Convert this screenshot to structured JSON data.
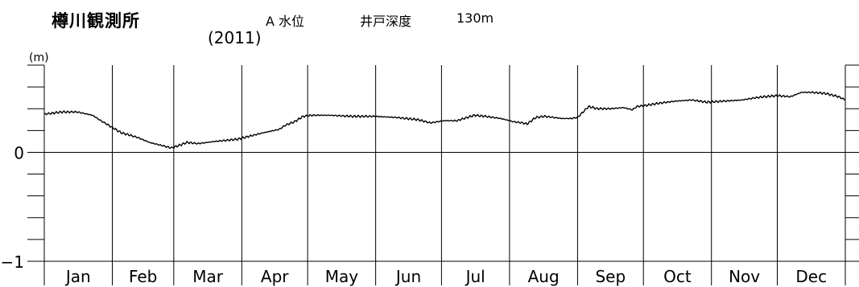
{
  "header": {
    "station": "樽川観測所",
    "year": "(2011)",
    "series_label": "A 水位",
    "depth_label": "井戸深度",
    "depth_value": "130m"
  },
  "chart_data": {
    "type": "line",
    "title": "樽川観測所",
    "ylabel": "(m)",
    "xlabel": "",
    "ylim": [
      -1,
      0.8
    ],
    "xlim": [
      0,
      365
    ],
    "zero_line": true,
    "y_tick_labels": [
      {
        "value": 0,
        "label": "0"
      },
      {
        "value": -1,
        "label": "−1"
      }
    ],
    "y_minor_step": 0.2,
    "categories": [
      "Jan",
      "Feb",
      "Mar",
      "Apr",
      "May",
      "Jun",
      "Jul",
      "Aug",
      "Sep",
      "Oct",
      "Nov",
      "Dec"
    ],
    "month_start_days": [
      0,
      31,
      59,
      90,
      120,
      151,
      181,
      212,
      243,
      273,
      304,
      334,
      365
    ],
    "series": [
      {
        "x": [
          0,
          8,
          15,
          22,
          25,
          30,
          35,
          42,
          48,
          52,
          56,
          58,
          61,
          65,
          70,
          78,
          88,
          100,
          107,
          110,
          114,
          118,
          122,
          130,
          140,
          150,
          160,
          170,
          176,
          182,
          188,
          196,
          201,
          208,
          214,
          218,
          220,
          224,
          228,
          232,
          236,
          240,
          243,
          246,
          248,
          252,
          258,
          264,
          268,
          270,
          274,
          280,
          288,
          295,
          302,
          310,
          318,
          324,
          328,
          334,
          340,
          345,
          350,
          356,
          362,
          365
        ],
        "y": [
          0.35,
          0.37,
          0.37,
          0.34,
          0.3,
          0.24,
          0.18,
          0.14,
          0.09,
          0.07,
          0.05,
          0.04,
          0.06,
          0.09,
          0.08,
          0.1,
          0.12,
          0.18,
          0.21,
          0.25,
          0.28,
          0.33,
          0.34,
          0.34,
          0.33,
          0.33,
          0.32,
          0.3,
          0.27,
          0.29,
          0.29,
          0.34,
          0.33,
          0.31,
          0.28,
          0.27,
          0.26,
          0.32,
          0.33,
          0.32,
          0.31,
          0.31,
          0.32,
          0.38,
          0.42,
          0.4,
          0.4,
          0.41,
          0.39,
          0.42,
          0.43,
          0.45,
          0.47,
          0.48,
          0.46,
          0.47,
          0.48,
          0.5,
          0.51,
          0.52,
          0.51,
          0.55,
          0.55,
          0.54,
          0.51,
          0.48
        ]
      }
    ]
  }
}
